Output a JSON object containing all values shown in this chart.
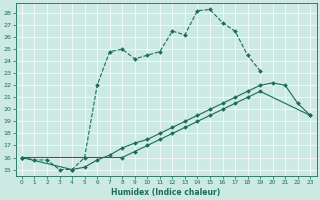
{
  "title": "",
  "xlabel": "Humidex (Indice chaleur)",
  "xlim_min": -0.5,
  "xlim_max": 23.5,
  "ylim_min": 14.5,
  "ylim_max": 28.8,
  "xticks": [
    0,
    1,
    2,
    3,
    4,
    5,
    6,
    7,
    8,
    9,
    10,
    11,
    12,
    13,
    14,
    15,
    16,
    17,
    18,
    19,
    20,
    21,
    22,
    23
  ],
  "yticks": [
    15,
    16,
    17,
    18,
    19,
    20,
    21,
    22,
    23,
    24,
    25,
    26,
    27,
    28
  ],
  "bg_color": "#cce9e2",
  "line_color": "#1a6b5a",
  "grid_color": "#ffffff",
  "line1_x": [
    0,
    1,
    2,
    3,
    4,
    5,
    6,
    7,
    8,
    9,
    10,
    11,
    12,
    13,
    14,
    15,
    16,
    17,
    18,
    19
  ],
  "line1_y": [
    16.0,
    15.8,
    15.8,
    15.0,
    15.0,
    16.0,
    22.0,
    24.8,
    25.0,
    24.2,
    24.5,
    24.8,
    26.5,
    26.2,
    28.2,
    28.3,
    27.2,
    26.5,
    24.5,
    23.2
  ],
  "line1_style": "--",
  "line2_x": [
    0,
    4,
    5,
    6,
    7,
    8,
    9,
    10,
    11,
    12,
    13,
    14,
    15,
    16,
    17,
    18,
    19,
    20,
    21,
    22,
    23
  ],
  "line2_y": [
    16.0,
    15.0,
    15.2,
    15.8,
    16.2,
    16.8,
    17.2,
    17.5,
    18.0,
    18.5,
    19.0,
    19.5,
    20.0,
    20.5,
    21.0,
    21.5,
    22.0,
    22.2,
    22.0,
    20.5,
    19.5
  ],
  "line2_style": "-",
  "line3_x": [
    0,
    8,
    9,
    10,
    11,
    12,
    13,
    14,
    15,
    16,
    17,
    18,
    19,
    23
  ],
  "line3_y": [
    16.0,
    16.0,
    16.5,
    17.0,
    17.5,
    18.0,
    18.5,
    19.0,
    19.5,
    20.0,
    20.5,
    21.0,
    21.5,
    19.5
  ],
  "line3_style": "-"
}
